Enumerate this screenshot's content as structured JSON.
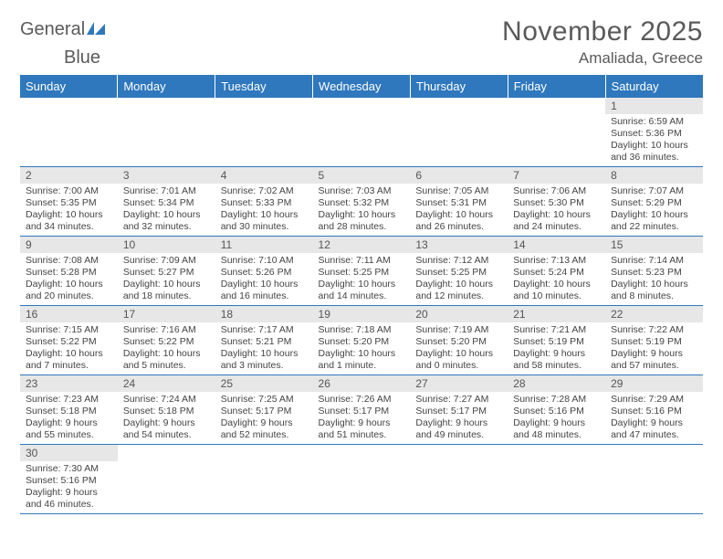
{
  "logo": {
    "word1": "General",
    "word2": "Blue"
  },
  "title": "November 2025",
  "location": "Amaliada, Greece",
  "colors": {
    "header_bg": "#2f78bd",
    "header_fg": "#ffffff",
    "daynum_bg": "#e7e7e7",
    "rule": "#2f78bd"
  },
  "font": {
    "title_size": 30,
    "location_size": 17,
    "header_size": 13,
    "body_size": 10.5
  },
  "weekdays": [
    "Sunday",
    "Monday",
    "Tuesday",
    "Wednesday",
    "Thursday",
    "Friday",
    "Saturday"
  ],
  "weeks": [
    [
      null,
      null,
      null,
      null,
      null,
      null,
      {
        "n": "1",
        "sr": "Sunrise: 6:59 AM",
        "ss": "Sunset: 5:36 PM",
        "d1": "Daylight: 10 hours",
        "d2": "and 36 minutes."
      }
    ],
    [
      {
        "n": "2",
        "sr": "Sunrise: 7:00 AM",
        "ss": "Sunset: 5:35 PM",
        "d1": "Daylight: 10 hours",
        "d2": "and 34 minutes."
      },
      {
        "n": "3",
        "sr": "Sunrise: 7:01 AM",
        "ss": "Sunset: 5:34 PM",
        "d1": "Daylight: 10 hours",
        "d2": "and 32 minutes."
      },
      {
        "n": "4",
        "sr": "Sunrise: 7:02 AM",
        "ss": "Sunset: 5:33 PM",
        "d1": "Daylight: 10 hours",
        "d2": "and 30 minutes."
      },
      {
        "n": "5",
        "sr": "Sunrise: 7:03 AM",
        "ss": "Sunset: 5:32 PM",
        "d1": "Daylight: 10 hours",
        "d2": "and 28 minutes."
      },
      {
        "n": "6",
        "sr": "Sunrise: 7:05 AM",
        "ss": "Sunset: 5:31 PM",
        "d1": "Daylight: 10 hours",
        "d2": "and 26 minutes."
      },
      {
        "n": "7",
        "sr": "Sunrise: 7:06 AM",
        "ss": "Sunset: 5:30 PM",
        "d1": "Daylight: 10 hours",
        "d2": "and 24 minutes."
      },
      {
        "n": "8",
        "sr": "Sunrise: 7:07 AM",
        "ss": "Sunset: 5:29 PM",
        "d1": "Daylight: 10 hours",
        "d2": "and 22 minutes."
      }
    ],
    [
      {
        "n": "9",
        "sr": "Sunrise: 7:08 AM",
        "ss": "Sunset: 5:28 PM",
        "d1": "Daylight: 10 hours",
        "d2": "and 20 minutes."
      },
      {
        "n": "10",
        "sr": "Sunrise: 7:09 AM",
        "ss": "Sunset: 5:27 PM",
        "d1": "Daylight: 10 hours",
        "d2": "and 18 minutes."
      },
      {
        "n": "11",
        "sr": "Sunrise: 7:10 AM",
        "ss": "Sunset: 5:26 PM",
        "d1": "Daylight: 10 hours",
        "d2": "and 16 minutes."
      },
      {
        "n": "12",
        "sr": "Sunrise: 7:11 AM",
        "ss": "Sunset: 5:25 PM",
        "d1": "Daylight: 10 hours",
        "d2": "and 14 minutes."
      },
      {
        "n": "13",
        "sr": "Sunrise: 7:12 AM",
        "ss": "Sunset: 5:25 PM",
        "d1": "Daylight: 10 hours",
        "d2": "and 12 minutes."
      },
      {
        "n": "14",
        "sr": "Sunrise: 7:13 AM",
        "ss": "Sunset: 5:24 PM",
        "d1": "Daylight: 10 hours",
        "d2": "and 10 minutes."
      },
      {
        "n": "15",
        "sr": "Sunrise: 7:14 AM",
        "ss": "Sunset: 5:23 PM",
        "d1": "Daylight: 10 hours",
        "d2": "and 8 minutes."
      }
    ],
    [
      {
        "n": "16",
        "sr": "Sunrise: 7:15 AM",
        "ss": "Sunset: 5:22 PM",
        "d1": "Daylight: 10 hours",
        "d2": "and 7 minutes."
      },
      {
        "n": "17",
        "sr": "Sunrise: 7:16 AM",
        "ss": "Sunset: 5:22 PM",
        "d1": "Daylight: 10 hours",
        "d2": "and 5 minutes."
      },
      {
        "n": "18",
        "sr": "Sunrise: 7:17 AM",
        "ss": "Sunset: 5:21 PM",
        "d1": "Daylight: 10 hours",
        "d2": "and 3 minutes."
      },
      {
        "n": "19",
        "sr": "Sunrise: 7:18 AM",
        "ss": "Sunset: 5:20 PM",
        "d1": "Daylight: 10 hours",
        "d2": "and 1 minute."
      },
      {
        "n": "20",
        "sr": "Sunrise: 7:19 AM",
        "ss": "Sunset: 5:20 PM",
        "d1": "Daylight: 10 hours",
        "d2": "and 0 minutes."
      },
      {
        "n": "21",
        "sr": "Sunrise: 7:21 AM",
        "ss": "Sunset: 5:19 PM",
        "d1": "Daylight: 9 hours",
        "d2": "and 58 minutes."
      },
      {
        "n": "22",
        "sr": "Sunrise: 7:22 AM",
        "ss": "Sunset: 5:19 PM",
        "d1": "Daylight: 9 hours",
        "d2": "and 57 minutes."
      }
    ],
    [
      {
        "n": "23",
        "sr": "Sunrise: 7:23 AM",
        "ss": "Sunset: 5:18 PM",
        "d1": "Daylight: 9 hours",
        "d2": "and 55 minutes."
      },
      {
        "n": "24",
        "sr": "Sunrise: 7:24 AM",
        "ss": "Sunset: 5:18 PM",
        "d1": "Daylight: 9 hours",
        "d2": "and 54 minutes."
      },
      {
        "n": "25",
        "sr": "Sunrise: 7:25 AM",
        "ss": "Sunset: 5:17 PM",
        "d1": "Daylight: 9 hours",
        "d2": "and 52 minutes."
      },
      {
        "n": "26",
        "sr": "Sunrise: 7:26 AM",
        "ss": "Sunset: 5:17 PM",
        "d1": "Daylight: 9 hours",
        "d2": "and 51 minutes."
      },
      {
        "n": "27",
        "sr": "Sunrise: 7:27 AM",
        "ss": "Sunset: 5:17 PM",
        "d1": "Daylight: 9 hours",
        "d2": "and 49 minutes."
      },
      {
        "n": "28",
        "sr": "Sunrise: 7:28 AM",
        "ss": "Sunset: 5:16 PM",
        "d1": "Daylight: 9 hours",
        "d2": "and 48 minutes."
      },
      {
        "n": "29",
        "sr": "Sunrise: 7:29 AM",
        "ss": "Sunset: 5:16 PM",
        "d1": "Daylight: 9 hours",
        "d2": "and 47 minutes."
      }
    ],
    [
      {
        "n": "30",
        "sr": "Sunrise: 7:30 AM",
        "ss": "Sunset: 5:16 PM",
        "d1": "Daylight: 9 hours",
        "d2": "and 46 minutes."
      },
      null,
      null,
      null,
      null,
      null,
      null
    ]
  ]
}
